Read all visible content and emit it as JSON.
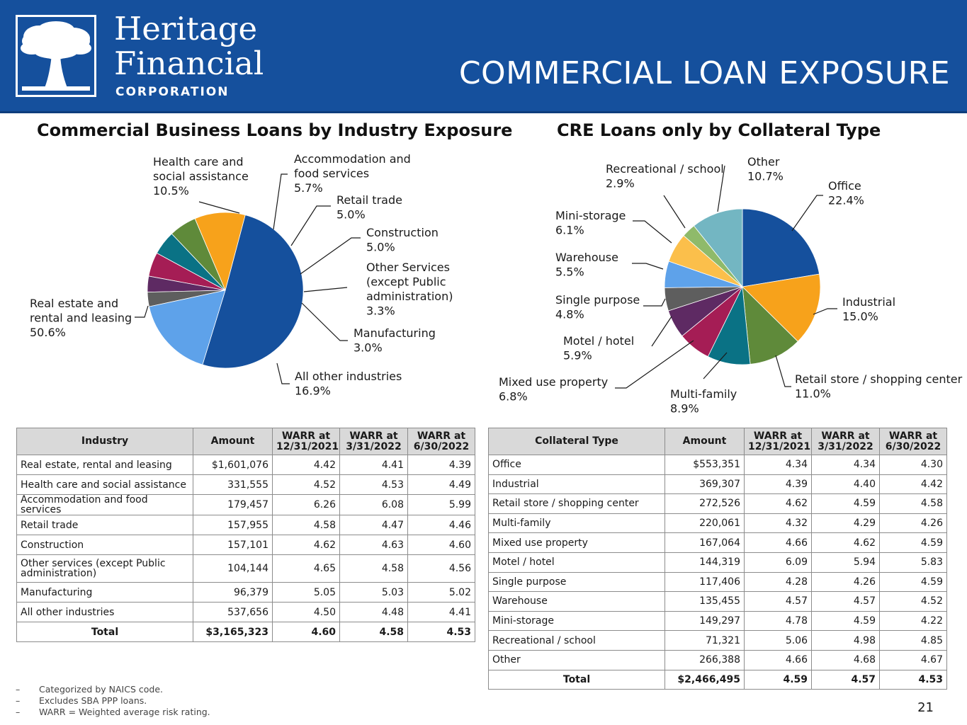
{
  "header": {
    "logo_name_line1": "Heritage",
    "logo_name_line2": "Financial",
    "logo_corp": "CORPORATION",
    "page_title": "COMMERCIAL LOAN EXPOSURE",
    "background_color": "#15509d"
  },
  "chart_data": [
    {
      "type": "pie",
      "title": "Commercial Business Loans by Industry Exposure",
      "slices": [
        {
          "label_lines": [
            "Real estate and",
            "rental and leasing"
          ],
          "value": 50.6,
          "value_label": "50.6%",
          "color": "#15509d"
        },
        {
          "label_lines": [
            "Health care and",
            "social assistance"
          ],
          "value": 10.5,
          "value_label": "10.5%",
          "color": "#f7a21b"
        },
        {
          "label_lines": [
            "Accommodation and",
            "food services"
          ],
          "value": 5.7,
          "value_label": "5.7%",
          "color": "#5f8a3a"
        },
        {
          "label_lines": [
            "Retail trade"
          ],
          "value": 5.0,
          "value_label": "5.0%",
          "color": "#0a7285"
        },
        {
          "label_lines": [
            "Construction"
          ],
          "value": 5.0,
          "value_label": "5.0%",
          "color": "#a51d55"
        },
        {
          "label_lines": [
            "Other Services",
            "(except Public",
            "administration)"
          ],
          "value": 3.3,
          "value_label": "3.3%",
          "color": "#5e2a63"
        },
        {
          "label_lines": [
            "Manufacturing"
          ],
          "value": 3.0,
          "value_label": "3.0%",
          "color": "#5e5e5e"
        },
        {
          "label_lines": [
            "All other industries"
          ],
          "value": 16.9,
          "value_label": "16.9%",
          "color": "#5ea2ea"
        }
      ]
    },
    {
      "type": "pie",
      "title": "CRE Loans only by Collateral Type",
      "slices": [
        {
          "label_lines": [
            "Office"
          ],
          "value": 22.4,
          "value_label": "22.4%",
          "color": "#15509d"
        },
        {
          "label_lines": [
            "Industrial"
          ],
          "value": 15.0,
          "value_label": "15.0%",
          "color": "#f7a21b"
        },
        {
          "label_lines": [
            "Retail store / shopping center"
          ],
          "value": 11.0,
          "value_label": "11.0%",
          "color": "#5f8a3a"
        },
        {
          "label_lines": [
            "Multi-family"
          ],
          "value": 8.9,
          "value_label": "8.9%",
          "color": "#0a7285"
        },
        {
          "label_lines": [
            "Mixed use property"
          ],
          "value": 6.8,
          "value_label": "6.8%",
          "color": "#a51d55"
        },
        {
          "label_lines": [
            "Motel / hotel"
          ],
          "value": 5.9,
          "value_label": "5.9%",
          "color": "#5e2a63"
        },
        {
          "label_lines": [
            "Single purpose"
          ],
          "value": 4.8,
          "value_label": "4.8%",
          "color": "#5e5e5e"
        },
        {
          "label_lines": [
            "Warehouse"
          ],
          "value": 5.5,
          "value_label": "5.5%",
          "color": "#5ea2ea"
        },
        {
          "label_lines": [
            "Mini-storage"
          ],
          "value": 6.1,
          "value_label": "6.1%",
          "color": "#fbbf4b"
        },
        {
          "label_lines": [
            "Recreational / school"
          ],
          "value": 2.9,
          "value_label": "2.9%",
          "color": "#8fba6a"
        },
        {
          "label_lines": [
            "Other"
          ],
          "value": 10.7,
          "value_label": "10.7%",
          "color": "#73b6c2"
        }
      ]
    },
    {
      "type": "table",
      "columns": [
        "Industry",
        "Amount",
        "WARR at 12/31/2021",
        "WARR at 3/31/2022",
        "WARR at 6/30/2022"
      ],
      "rows": [
        [
          "Real estate, rental and leasing",
          "$1,601,076",
          "4.42",
          "4.41",
          "4.39"
        ],
        [
          "Health care and social assistance",
          "331,555",
          "4.52",
          "4.53",
          "4.49"
        ],
        [
          "Accommodation and food services",
          "179,457",
          "6.26",
          "6.08",
          "5.99"
        ],
        [
          "Retail trade",
          "157,955",
          "4.58",
          "4.47",
          "4.46"
        ],
        [
          "Construction",
          "157,101",
          "4.62",
          "4.63",
          "4.60"
        ],
        [
          "Other services (except Public administration)",
          "104,144",
          "4.65",
          "4.58",
          "4.56"
        ],
        [
          "Manufacturing",
          "96,379",
          "5.05",
          "5.03",
          "5.02"
        ],
        [
          "All other industries",
          "537,656",
          "4.50",
          "4.48",
          "4.41"
        ]
      ],
      "total": [
        "Total",
        "$3,165,323",
        "4.60",
        "4.58",
        "4.53"
      ]
    },
    {
      "type": "table",
      "columns": [
        "Collateral Type",
        "Amount",
        "WARR at 12/31/2021",
        "WARR at 3/31/2022",
        "WARR at 6/30/2022"
      ],
      "rows": [
        [
          "Office",
          "$553,351",
          "4.34",
          "4.34",
          "4.30"
        ],
        [
          "Industrial",
          "369,307",
          "4.39",
          "4.40",
          "4.42"
        ],
        [
          "Retail store / shopping center",
          "272,526",
          "4.62",
          "4.59",
          "4.58"
        ],
        [
          "Multi-family",
          "220,061",
          "4.32",
          "4.29",
          "4.26"
        ],
        [
          "Mixed use property",
          "167,064",
          "4.66",
          "4.62",
          "4.59"
        ],
        [
          "Motel / hotel",
          "144,319",
          "6.09",
          "5.94",
          "5.83"
        ],
        [
          "Single purpose",
          "117,406",
          "4.28",
          "4.26",
          "4.59"
        ],
        [
          "Warehouse",
          "135,455",
          "4.57",
          "4.57",
          "4.52"
        ],
        [
          "Mini-storage",
          "149,297",
          "4.78",
          "4.59",
          "4.22"
        ],
        [
          "Recreational / school",
          "71,321",
          "5.06",
          "4.98",
          "4.85"
        ],
        [
          "Other",
          "266,388",
          "4.66",
          "4.68",
          "4.67"
        ]
      ],
      "total": [
        "Total",
        "$2,466,495",
        "4.59",
        "4.57",
        "4.53"
      ]
    }
  ],
  "footnotes": {
    "dash": "–",
    "items": [
      "Categorized by NAICS code.",
      "Excludes SBA PPP loans.",
      "WARR = Weighted average risk rating."
    ]
  },
  "page_number": "21"
}
